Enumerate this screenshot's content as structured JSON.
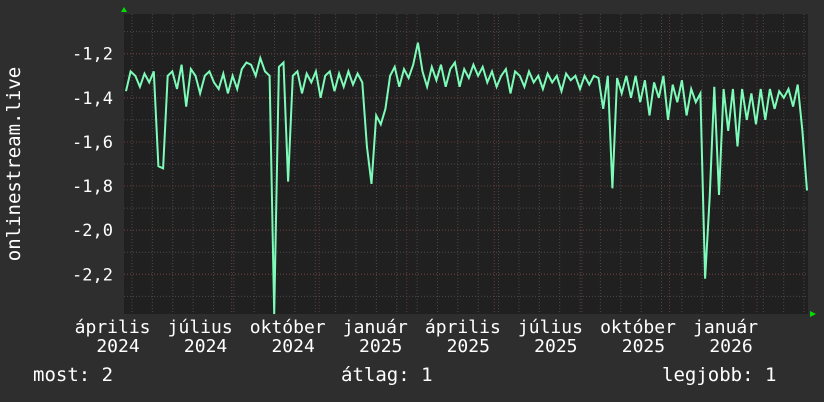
{
  "chart_data": {
    "type": "line",
    "title": "",
    "ylabel": "onlinestream.live",
    "xlabel": "",
    "ylim": [
      -2.38,
      -1.02
    ],
    "yticks": [
      -1.2,
      -1.4,
      -1.6,
      -1.8,
      -2.0,
      -2.2
    ],
    "ytick_labels": [
      "-1,2",
      "-1,4",
      "-1,6",
      "-1,8",
      "-2,0",
      "-2,2"
    ],
    "xtick_labels": [
      "április 2024",
      "július 2024",
      "október 2024",
      "január 2025",
      "április 2025",
      "július 2025",
      "október 2025",
      "január 2026"
    ],
    "grid": true,
    "colors": {
      "line": "#7dfcb9",
      "background": "#2e2e2e",
      "plot": "#202020",
      "major_grid": "#6a3a3a",
      "minor_grid": "#4a4a4a",
      "axis_arrow": "#00e000"
    },
    "values": [
      -1.37,
      -1.28,
      -1.3,
      -1.35,
      -1.29,
      -1.33,
      -1.28,
      -1.71,
      -1.72,
      -1.3,
      -1.28,
      -1.36,
      -1.25,
      -1.44,
      -1.27,
      -1.3,
      -1.38,
      -1.3,
      -1.28,
      -1.33,
      -1.36,
      -1.29,
      -1.38,
      -1.3,
      -1.36,
      -1.27,
      -1.24,
      -1.25,
      -1.3,
      -1.22,
      -1.28,
      -1.3,
      -2.38,
      -1.26,
      -1.24,
      -1.78,
      -1.3,
      -1.28,
      -1.38,
      -1.29,
      -1.33,
      -1.28,
      -1.4,
      -1.3,
      -1.28,
      -1.37,
      -1.29,
      -1.35,
      -1.28,
      -1.34,
      -1.29,
      -1.33,
      -1.62,
      -1.79,
      -1.48,
      -1.52,
      -1.45,
      -1.3,
      -1.26,
      -1.35,
      -1.27,
      -1.31,
      -1.25,
      -1.15,
      -1.28,
      -1.35,
      -1.26,
      -1.32,
      -1.25,
      -1.35,
      -1.27,
      -1.24,
      -1.35,
      -1.27,
      -1.31,
      -1.25,
      -1.3,
      -1.26,
      -1.33,
      -1.28,
      -1.35,
      -1.3,
      -1.27,
      -1.38,
      -1.28,
      -1.3,
      -1.35,
      -1.28,
      -1.33,
      -1.3,
      -1.36,
      -1.29,
      -1.33,
      -1.3,
      -1.37,
      -1.29,
      -1.32,
      -1.3,
      -1.36,
      -1.3,
      -1.34,
      -1.3,
      -1.31,
      -1.45,
      -1.3,
      -1.81,
      -1.31,
      -1.38,
      -1.3,
      -1.4,
      -1.3,
      -1.42,
      -1.32,
      -1.48,
      -1.33,
      -1.4,
      -1.3,
      -1.5,
      -1.34,
      -1.42,
      -1.32,
      -1.48,
      -1.36,
      -1.42,
      -1.38,
      -2.22,
      -1.85,
      -1.35,
      -1.84,
      -1.36,
      -1.55,
      -1.36,
      -1.62,
      -1.36,
      -1.5,
      -1.38,
      -1.52,
      -1.36,
      -1.5,
      -1.36,
      -1.45,
      -1.37,
      -1.4,
      -1.36,
      -1.44,
      -1.34,
      -1.55,
      -1.82
    ]
  },
  "legend": {
    "current": "most: 2",
    "average": "átlag: 1",
    "best": "legjobb: 1"
  }
}
